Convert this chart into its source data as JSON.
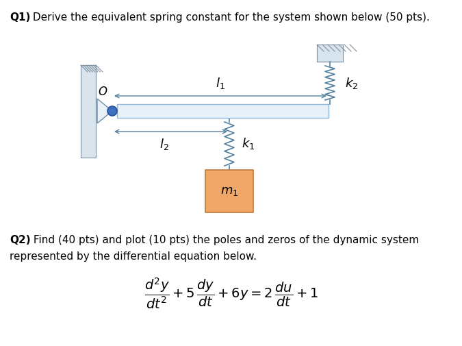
{
  "bg_color": "#ffffff",
  "text_color": "#000000",
  "beam_color": "#e8f0f8",
  "beam_edge_color": "#90b8d8",
  "wall_color": "#c8d8e8",
  "wall_hatch_color": "#7090a8",
  "spring_color": "#5080a0",
  "arrow_color": "#5080a0",
  "pivot_fill": "#e8f0f8",
  "pivot_edge": "#7090a8",
  "dot_fill": "#4070c0",
  "dot_edge": "#2050a0",
  "mass_fill": "#f0a868",
  "mass_edge": "#c07838",
  "q1_bold": "Q1)",
  "q1_rest": " Derive the equivalent spring constant for the system shown below (50 pts).",
  "q2_bold": "Q2)",
  "q2_rest": " Find (40 pts) and plot (10 pts) the poles and zeros of the dynamic system",
  "q2_rest2": "represented by the differential equation below.",
  "label_O": "$O$",
  "label_l1": "$l_1$",
  "label_l2": "$l_2$",
  "label_k1": "$k_1$",
  "label_k2": "$k_2$",
  "label_m1": "$m_1$"
}
